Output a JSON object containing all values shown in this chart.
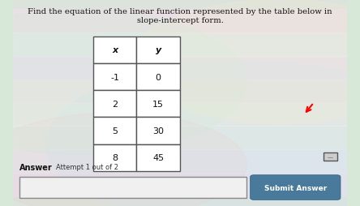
{
  "title": "Find the equation of the linear function represented by the table below in slope-intercept form.",
  "table_headers": [
    "x",
    "y"
  ],
  "table_data": [
    [
      "-1",
      "0"
    ],
    [
      "2",
      "15"
    ],
    [
      "5",
      "30"
    ],
    [
      "8",
      "45"
    ]
  ],
  "answer_label": "Answer",
  "attempt_label": "Attempt 1 out of 2",
  "submit_button_text": "Submit Answer",
  "bg_color": "#d8e8d8",
  "table_bg": "#ffffff",
  "table_border": "#555555",
  "text_color": "#111111",
  "button_color": "#4a7a9b",
  "button_text_color": "#ffffff",
  "input_box_color": "#f0f0f0"
}
